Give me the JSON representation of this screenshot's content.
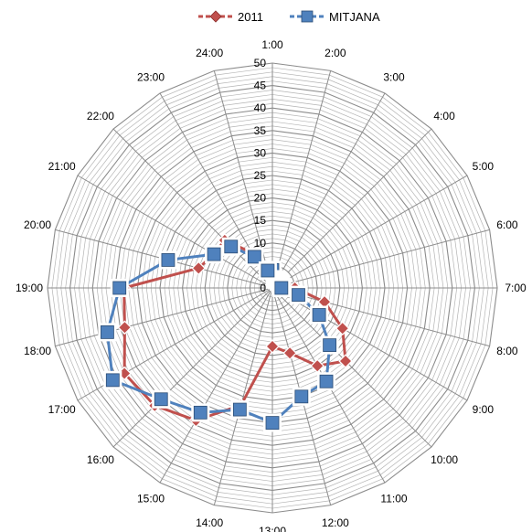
{
  "chart_data": {
    "type": "radar",
    "categories": [
      "1:00",
      "2:00",
      "3:00",
      "4:00",
      "5:00",
      "6:00",
      "7:00",
      "8:00",
      "9:00",
      "10:00",
      "11:00",
      "12:00",
      "13:00",
      "14:00",
      "15:00",
      "16:00",
      "17:00",
      "18:00",
      "19:00",
      "20:00",
      "21:00",
      "22:00",
      "23:00",
      "24:00"
    ],
    "r_ticks": [
      "0",
      "5",
      "10",
      "15",
      "20",
      "25",
      "30",
      "35",
      "40",
      "45",
      "50"
    ],
    "rlim": [
      0,
      50
    ],
    "grid": true,
    "legend_position": "top",
    "series": [
      {
        "name": "2011",
        "color": "#C0504D",
        "marker": "diamond",
        "values": [
          2,
          2,
          2,
          2,
          2,
          3,
          5,
          12,
          18,
          23,
          20,
          15,
          13,
          27,
          34,
          37,
          38,
          34,
          33,
          17,
          15,
          15,
          9,
          5
        ]
      },
      {
        "name": "MITJANA",
        "color": "#4F81BD",
        "marker": "square",
        "values": [
          4,
          2,
          2,
          2,
          2,
          2,
          2,
          6,
          12,
          18,
          24,
          25,
          30,
          28,
          32,
          35,
          41,
          38,
          34,
          24,
          15,
          13,
          8,
          4
        ]
      }
    ]
  }
}
